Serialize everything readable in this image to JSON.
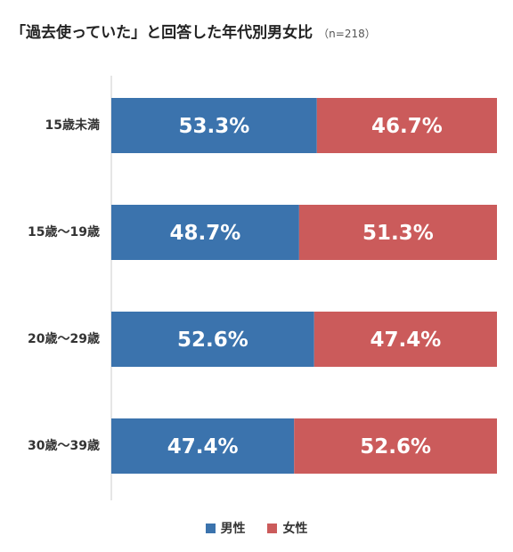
{
  "title": "「過去使っていた」と回答した年代別男女比",
  "title_note": "（n=218）",
  "colors": {
    "male": "#3b73ad",
    "female": "#cb5b5b",
    "axis": "#cccccc"
  },
  "chart_data": {
    "type": "bar",
    "stacked": true,
    "orientation": "horizontal",
    "title": "「過去使っていた」と回答した年代別男女比",
    "subtitle": "（n=218）",
    "categories": [
      "15歳未満",
      "15歳〜19歳",
      "20歳〜29歳",
      "30歳〜39歳"
    ],
    "series": [
      {
        "name": "男性",
        "values": [
          53.3,
          48.7,
          52.6,
          47.4
        ],
        "labels": [
          "53.3%",
          "48.7%",
          "52.6%",
          "47.4%"
        ]
      },
      {
        "name": "女性",
        "values": [
          46.7,
          51.3,
          47.4,
          52.6
        ],
        "labels": [
          "46.7%",
          "51.3%",
          "47.4%",
          "52.6%"
        ]
      }
    ],
    "xlim": [
      0,
      100
    ],
    "grid": false,
    "legend": "bottom"
  }
}
